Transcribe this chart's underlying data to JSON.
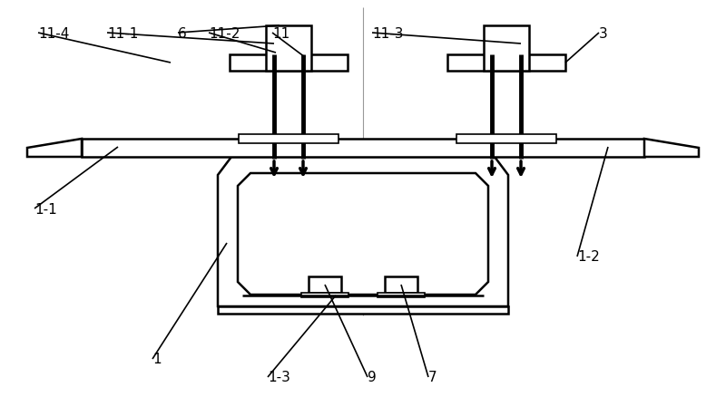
{
  "bg_color": "#ffffff",
  "line_color": "#000000",
  "lw_thin": 1.2,
  "lw_med": 1.8,
  "lw_thick": 3.5,
  "figsize": [
    8.0,
    4.39
  ],
  "dpi": 100,
  "fs": 11
}
